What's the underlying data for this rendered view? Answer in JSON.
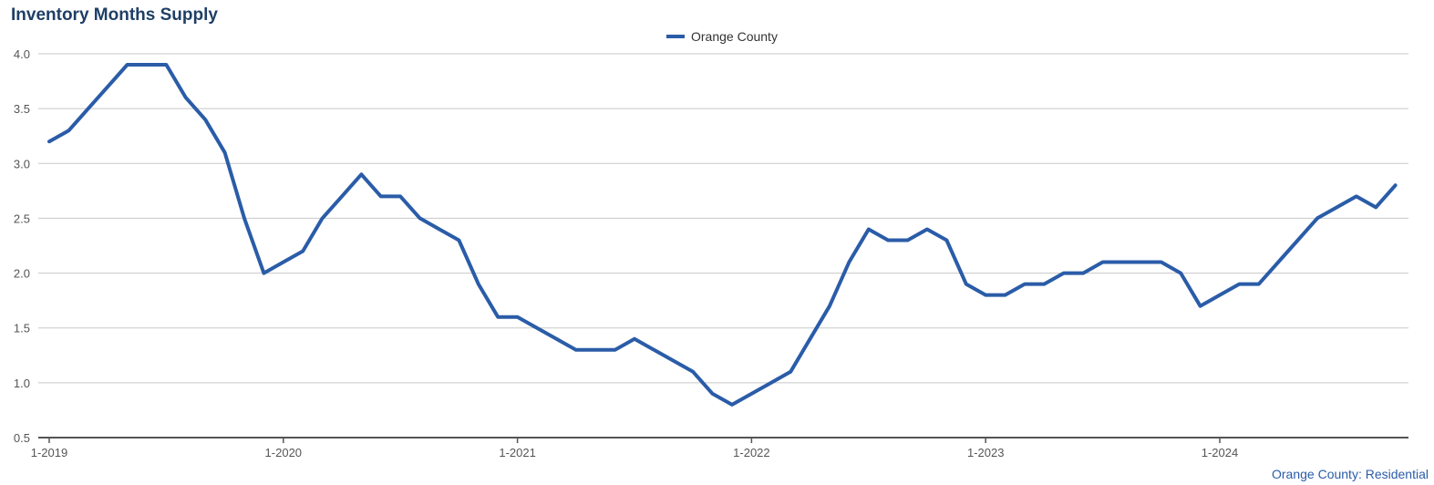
{
  "header": {
    "title": "Inventory Months Supply"
  },
  "footer": {
    "source": "Orange County: Residential"
  },
  "colors": {
    "line": "#2a5ca8",
    "grid": "#c8c8c8",
    "axis": "#555555"
  },
  "chart_data": {
    "type": "line",
    "title": "Inventory Months Supply",
    "xlabel": "",
    "ylabel": "",
    "ylim": [
      0.5,
      4.0
    ],
    "yticks": [
      "4.0",
      "3.5",
      "3.0",
      "2.5",
      "2.0",
      "1.5",
      "1.0",
      "0.5"
    ],
    "xticks": [
      "1-2019",
      "1-2020",
      "1-2021",
      "1-2022",
      "1-2023",
      "1-2024"
    ],
    "legend_position": "top-center",
    "grid": true,
    "series": [
      {
        "name": "Orange County",
        "start": "1-2019",
        "frequency": "monthly",
        "values": [
          3.2,
          3.3,
          3.5,
          3.7,
          3.9,
          3.9,
          3.9,
          3.6,
          3.4,
          3.1,
          2.5,
          2.0,
          2.1,
          2.2,
          2.5,
          2.7,
          2.9,
          2.7,
          2.7,
          2.5,
          2.4,
          2.3,
          1.9,
          1.6,
          1.6,
          1.5,
          1.4,
          1.3,
          1.3,
          1.3,
          1.4,
          1.3,
          1.2,
          1.1,
          0.9,
          0.8,
          0.9,
          1.0,
          1.1,
          1.4,
          1.7,
          2.1,
          2.4,
          2.3,
          2.3,
          2.4,
          2.3,
          1.9,
          1.8,
          1.8,
          1.9,
          1.9,
          2.0,
          2.0,
          2.1,
          2.1,
          2.1,
          2.1,
          2.0,
          1.7,
          1.8,
          1.9,
          1.9,
          2.1,
          2.3,
          2.5,
          2.6,
          2.7,
          2.6,
          2.8
        ]
      }
    ]
  }
}
